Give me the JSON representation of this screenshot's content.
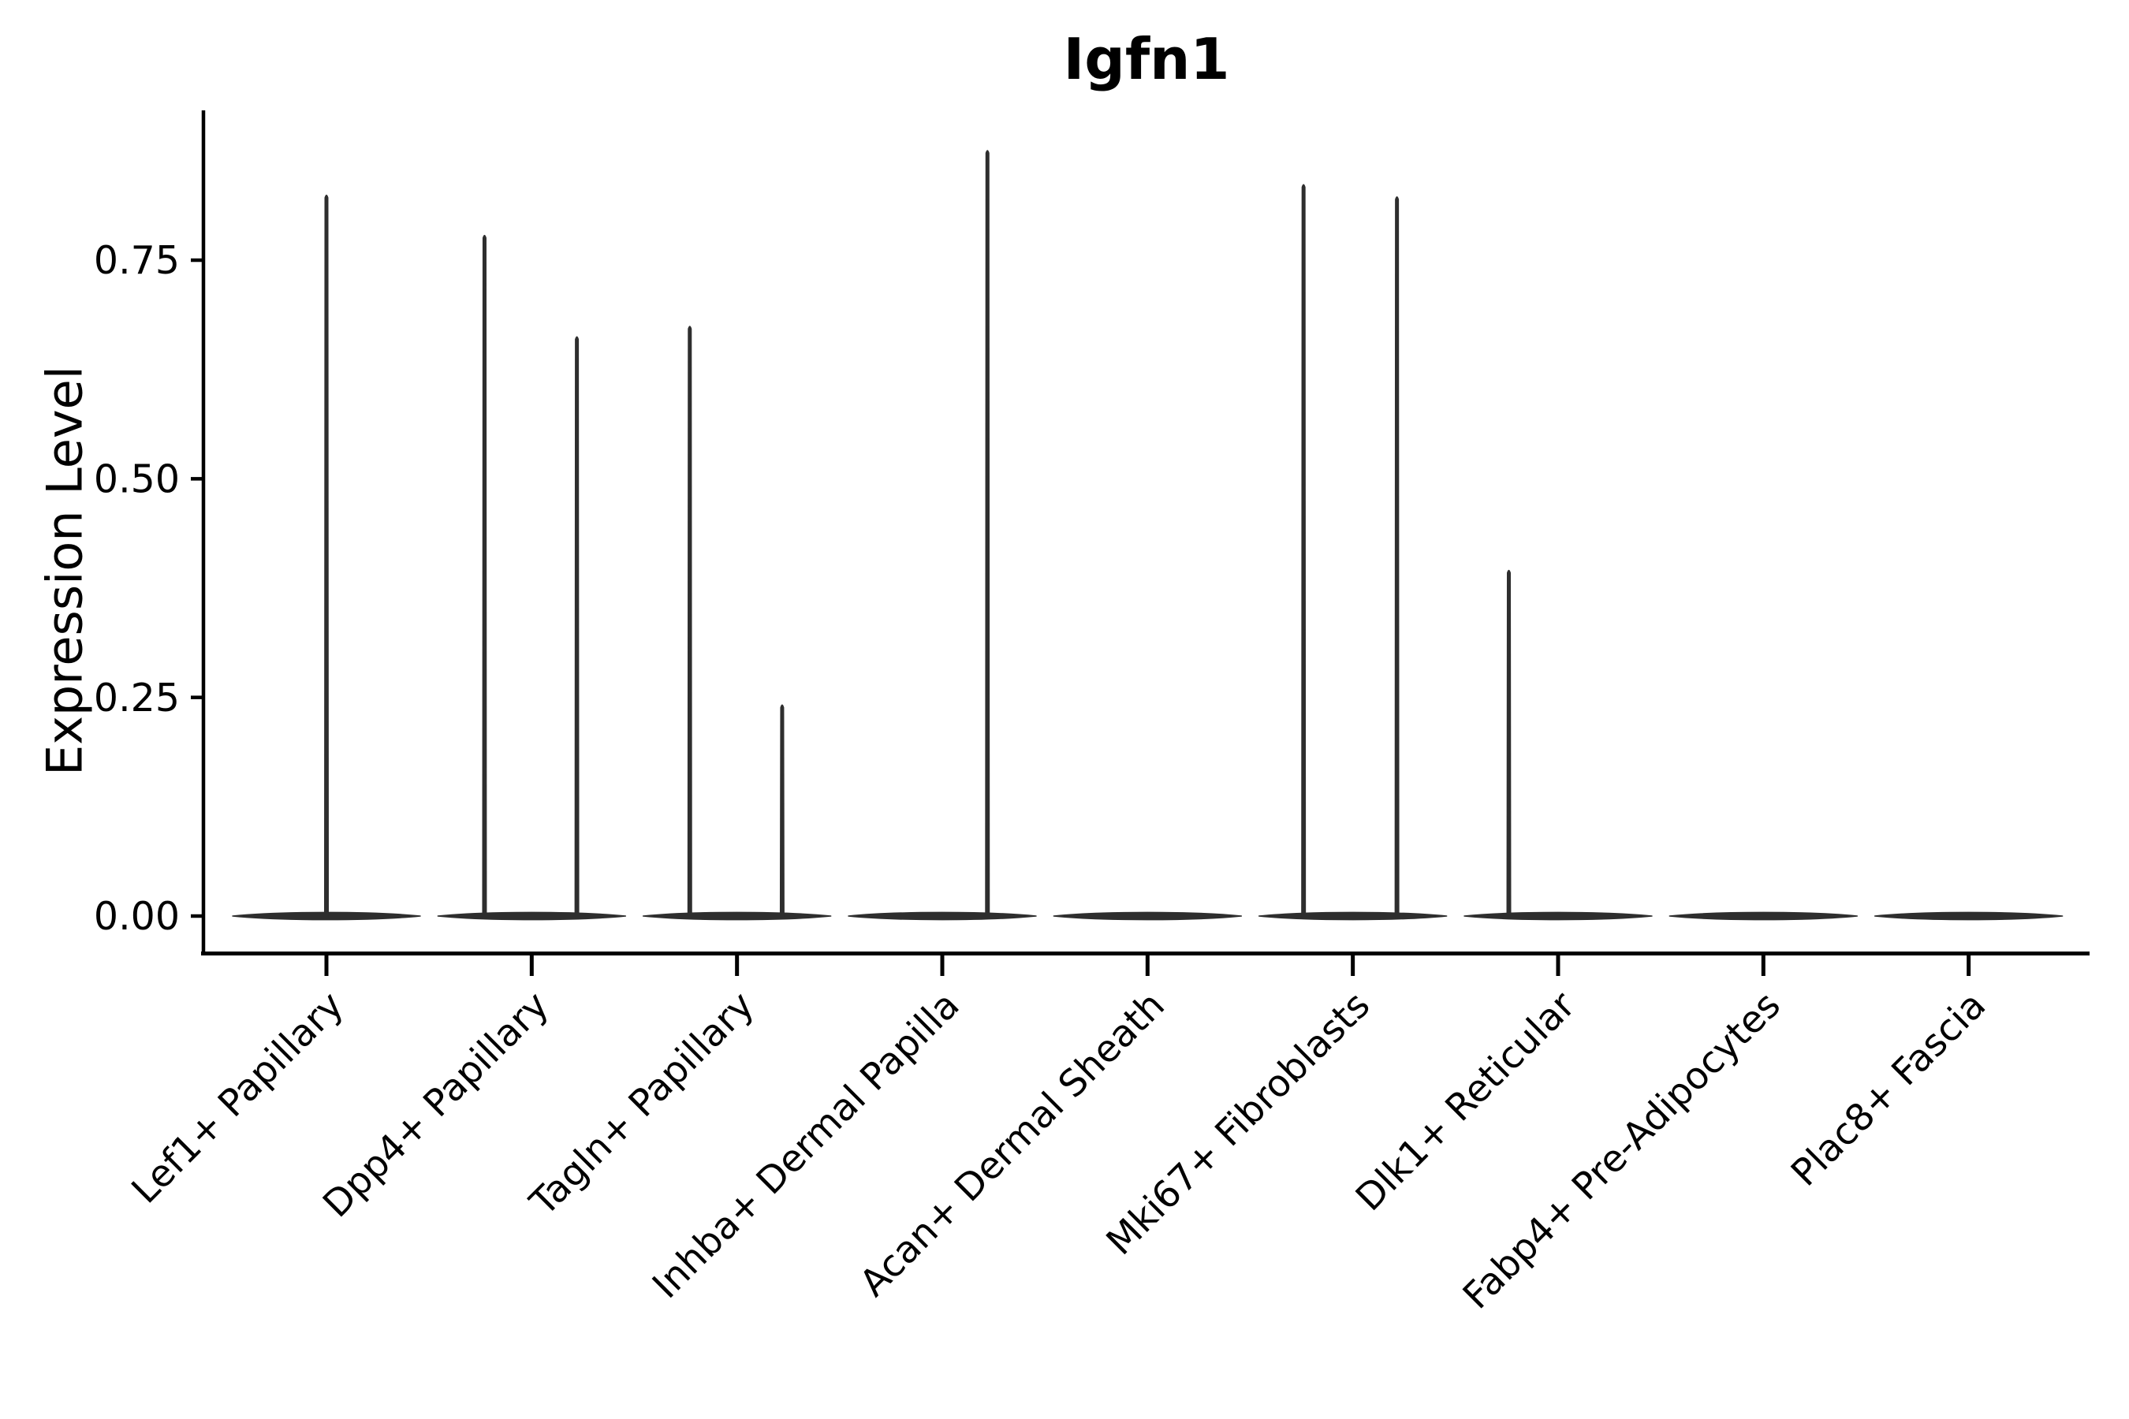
{
  "title": "Igfn1",
  "axes": {
    "ylabel": "Expression Level",
    "xlabel": ""
  },
  "colors": {
    "violin": "#2e2e2e",
    "axis": "#000000",
    "text": "#000000",
    "background": "#ffffff"
  },
  "chart_data": {
    "type": "violin",
    "title": "Igfn1",
    "xlabel": "",
    "ylabel": "Expression Level",
    "ylim": [
      0,
      0.92
    ],
    "yticks": [
      {
        "value": 0.0,
        "label": "0.00"
      },
      {
        "value": 0.25,
        "label": "0.25"
      },
      {
        "value": 0.5,
        "label": "0.50"
      },
      {
        "value": 0.75,
        "label": "0.75"
      }
    ],
    "grid": false,
    "legend": false,
    "categories": [
      "Lef1+ Papillary",
      "Dpp4+ Papillary",
      "Tagln+ Papillary",
      "Inhba+ Dermal Papilla",
      "Acan+ Dermal Sheath",
      "Mki67+ Fibroblasts",
      "Dlk1+ Reticular",
      "Fabp4+ Pre-Adipocytes",
      "Plac8+ Fascia"
    ],
    "x_tick_rotation_deg": 45,
    "violins": [
      {
        "category": "Lef1+ Papillary",
        "body_center_value": 0,
        "max_value": 0.83,
        "spikes": [
          {
            "offset_frac": 0.0,
            "value": 0.826
          }
        ]
      },
      {
        "category": "Dpp4+ Papillary",
        "body_center_value": 0,
        "max_value": 0.78,
        "spikes": [
          {
            "offset_frac": -0.23,
            "value": 0.78
          },
          {
            "offset_frac": 0.22,
            "value": 0.664
          }
        ]
      },
      {
        "category": "Tagln+ Papillary",
        "body_center_value": 0,
        "max_value": 0.68,
        "spikes": [
          {
            "offset_frac": -0.23,
            "value": 0.676
          },
          {
            "offset_frac": 0.22,
            "value": 0.243
          }
        ]
      },
      {
        "category": "Inhba+ Dermal Papilla",
        "body_center_value": 0,
        "max_value": 0.88,
        "spikes": [
          {
            "offset_frac": 0.22,
            "value": 0.877
          }
        ]
      },
      {
        "category": "Acan+ Dermal Sheath",
        "body_center_value": 0,
        "max_value": 0,
        "spikes": []
      },
      {
        "category": "Mki67+ Fibroblasts",
        "body_center_value": 0,
        "max_value": 0.84,
        "spikes": [
          {
            "offset_frac": -0.24,
            "value": 0.838
          },
          {
            "offset_frac": 0.215,
            "value": 0.824
          }
        ]
      },
      {
        "category": "Dlk1+ Reticular",
        "body_center_value": 0,
        "max_value": 0.4,
        "spikes": [
          {
            "offset_frac": -0.24,
            "value": 0.397
          }
        ]
      },
      {
        "category": "Fabp4+ Pre-Adipocytes",
        "body_center_value": 0,
        "max_value": 0,
        "spikes": []
      },
      {
        "category": "Plac8+ Fascia",
        "body_center_value": 0,
        "max_value": 0,
        "spikes": []
      }
    ]
  }
}
